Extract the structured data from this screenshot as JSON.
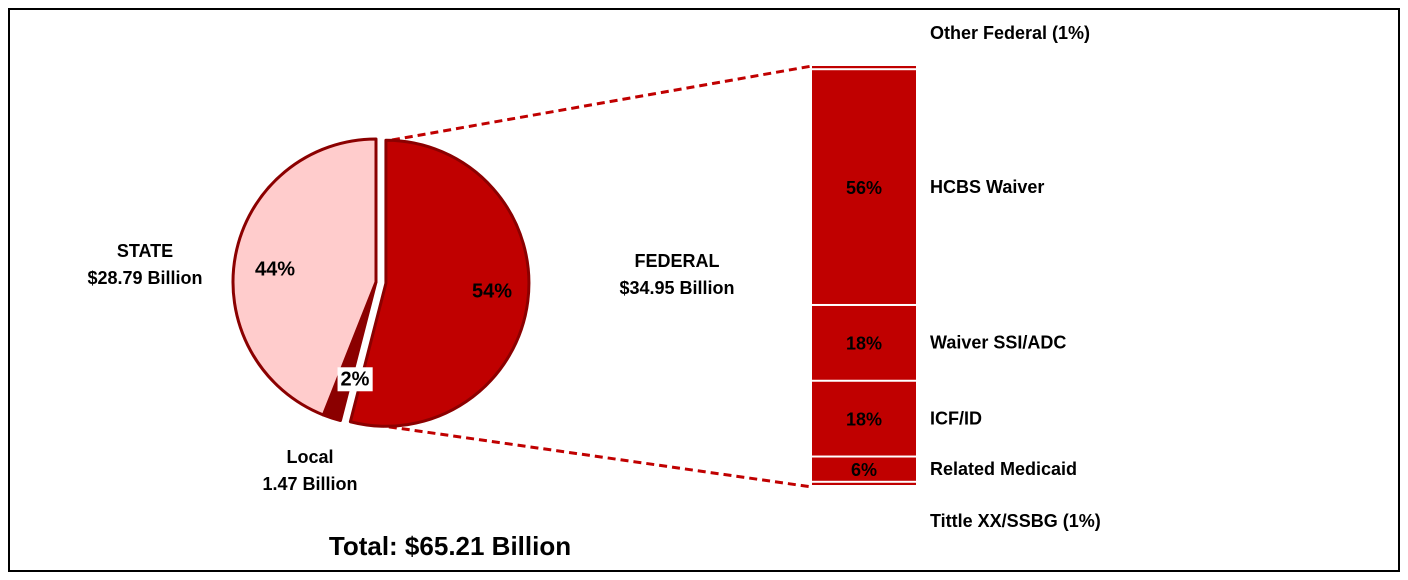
{
  "chart_data": [
    {
      "type": "pie",
      "categories": [
        "FEDERAL",
        "Local",
        "STATE"
      ],
      "sublabels": [
        "$34.95 Billion",
        "1.47 Billion",
        "$28.79 Billion"
      ],
      "values": [
        54,
        2,
        44
      ],
      "value_labels": [
        "54%",
        "2%",
        "44%"
      ],
      "colors": [
        "#c00000",
        "#8b0000",
        "#ffcccc"
      ],
      "exploded": 0,
      "note": "Total: $65.21 Billion"
    },
    {
      "type": "stacked-bar",
      "categories": [
        "Other Federal (1%)",
        "HCBS Waiver",
        "Waiver SSI/ADC",
        "ICF/ID",
        "Related Medicaid",
        "Tittle XX/SSBG (1%)"
      ],
      "values": [
        1,
        56,
        18,
        18,
        6,
        1
      ],
      "value_labels": [
        null,
        "56%",
        "18%",
        "18%",
        "6%",
        null
      ],
      "color": "#c00000"
    }
  ]
}
